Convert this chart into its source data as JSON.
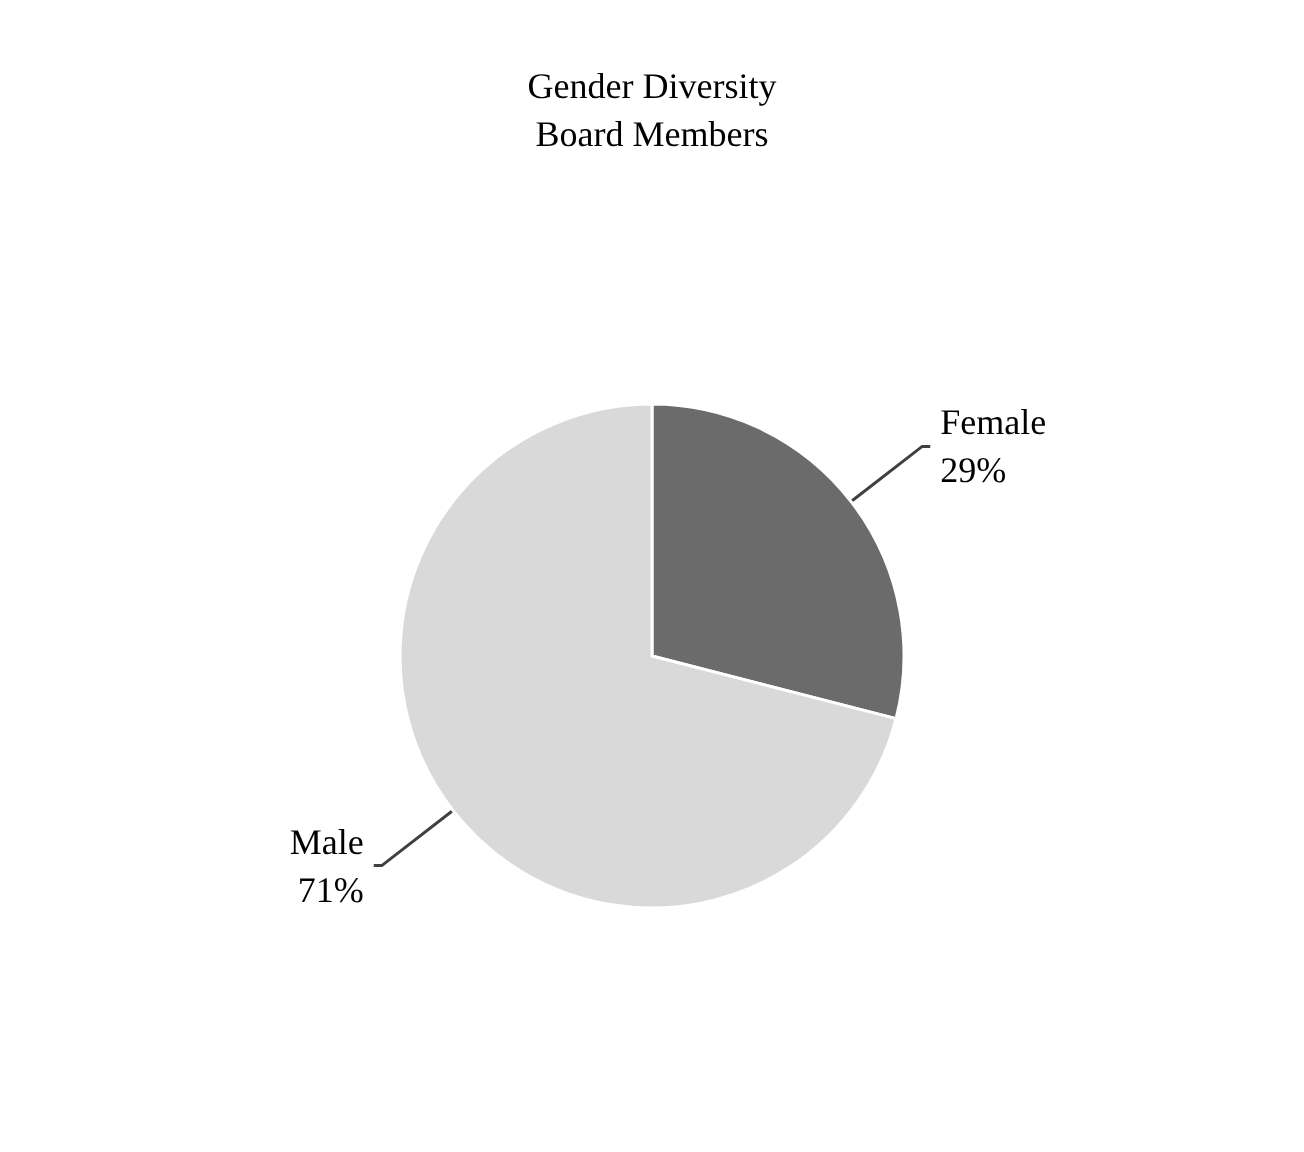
{
  "chart_data": {
    "type": "pie",
    "title": "Gender Diversity\nBoard Members",
    "categories": [
      "Female",
      "Male"
    ],
    "values": [
      29,
      71
    ],
    "value_labels": [
      "29%",
      "71%"
    ],
    "colors": [
      "#6b6b6b",
      "#d9d9d9"
    ],
    "legend": false
  }
}
